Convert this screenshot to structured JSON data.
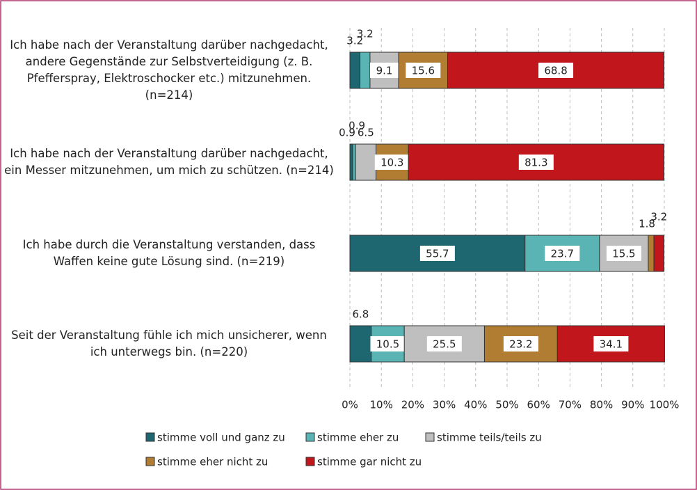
{
  "chart_data": {
    "type": "stacked-bar-horizontal",
    "categories": [
      "Ich habe nach der Veranstaltung darüber nachgedacht, andere Gegenstände zur Selbstverteidigung (z. B. Pfefferspray, Elektroschocker etc.) mitzunehmen. (n=214)",
      "Ich habe nach der Veranstaltung darüber nachgedacht, ein Messer mitzunehmen, um mich zu schützen. (n=214)",
      "Ich habe durch die Veranstaltung verstanden, dass Waffen keine gute Lösung sind. (n=219)",
      "Seit der Veranstaltung fühle ich mich unsicherer, wenn ich unterwegs bin. (n=220)"
    ],
    "series": [
      {
        "name": "stimme voll und ganz zu",
        "color": "#1e6670",
        "values": [
          3.2,
          0.9,
          55.7,
          6.8
        ]
      },
      {
        "name": "stimme eher zu",
        "color": "#5ab4b4",
        "values": [
          3.2,
          0.9,
          23.7,
          10.5
        ]
      },
      {
        "name": "stimme teils/teils zu",
        "color": "#bfbfbf",
        "values": [
          9.1,
          6.5,
          15.5,
          25.5
        ]
      },
      {
        "name": "stimme eher nicht zu",
        "color": "#b07d32",
        "values": [
          15.6,
          10.3,
          1.8,
          23.2
        ]
      },
      {
        "name": "stimme gar nicht zu",
        "color": "#c0161c",
        "values": [
          68.8,
          81.3,
          3.2,
          34.1
        ]
      }
    ],
    "xlim": [
      0,
      100
    ],
    "xticks": [
      {
        "value": 0,
        "label": "0%"
      },
      {
        "value": 10,
        "label": "10%"
      },
      {
        "value": 20,
        "label": "20%"
      },
      {
        "value": 30,
        "label": "30%"
      },
      {
        "value": 40,
        "label": "40%"
      },
      {
        "value": 50,
        "label": "50%"
      },
      {
        "value": 60,
        "label": "60%"
      },
      {
        "value": 70,
        "label": "70%"
      },
      {
        "value": 80,
        "label": "80%"
      },
      {
        "value": 90,
        "label": "90%"
      },
      {
        "value": 100,
        "label": "100%"
      }
    ],
    "grid": true,
    "legend": "bottom"
  }
}
